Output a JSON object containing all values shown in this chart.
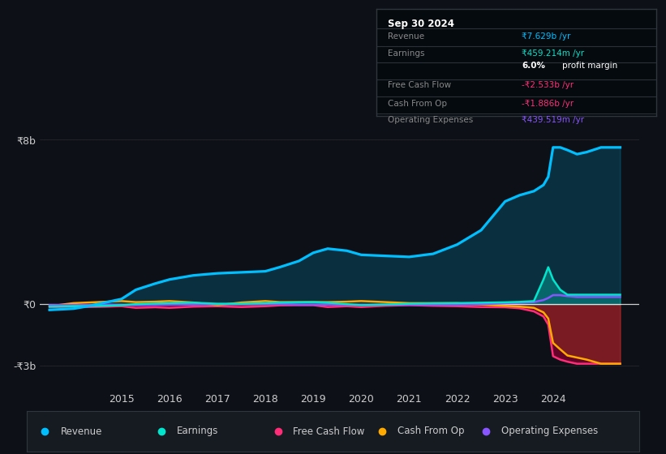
{
  "background_color": "#0d1117",
  "revenue_color": "#00bfff",
  "earnings_color": "#00e5cc",
  "free_cash_flow_color": "#ff2d78",
  "cash_from_op_color": "#ffaa00",
  "operating_expenses_color": "#8855ff",
  "legend_bg": "#161b22",
  "legend_border": "#30363d",
  "info_box_bg": "#050a0e",
  "ylim_min": -4.2,
  "ylim_max": 9.5,
  "xlim_min": 2013.3,
  "xlim_max": 2025.8,
  "ytick_labels": [
    "₹8b",
    "₹0",
    "-₹3b"
  ],
  "ytick_values": [
    8,
    0,
    -3
  ],
  "xtick_labels": [
    "2015",
    "2016",
    "2017",
    "2018",
    "2019",
    "2020",
    "2021",
    "2022",
    "2023",
    "2024"
  ],
  "xtick_values": [
    2015,
    2016,
    2017,
    2018,
    2019,
    2020,
    2021,
    2022,
    2023,
    2024
  ],
  "info_title": "Sep 30 2024",
  "legend_entries": [
    {
      "label": "Revenue",
      "color": "#00bfff"
    },
    {
      "label": "Earnings",
      "color": "#00e5cc"
    },
    {
      "label": "Free Cash Flow",
      "color": "#ff2d78"
    },
    {
      "label": "Cash From Op",
      "color": "#ffaa00"
    },
    {
      "label": "Operating Expenses",
      "color": "#8855ff"
    }
  ]
}
